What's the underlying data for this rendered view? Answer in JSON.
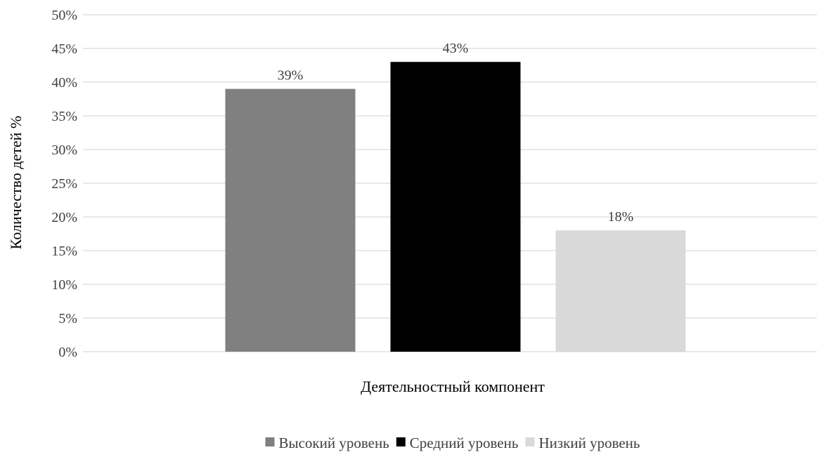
{
  "chart_data": {
    "type": "bar",
    "categories": [
      "Деятельностный компонент"
    ],
    "series": [
      {
        "name": "Высокий уровень",
        "values": [
          39
        ],
        "color": "#808080",
        "value_label": "39%"
      },
      {
        "name": "Средний уровень",
        "values": [
          43
        ],
        "color": "#000000",
        "value_label": "43%"
      },
      {
        "name": "Низкий уровень",
        "values": [
          18
        ],
        "color": "#d9d9d9",
        "value_label": "18%"
      }
    ],
    "xlabel": "Деятельностный компонент",
    "ylabel": "Количество детей %",
    "ylim": [
      0,
      50
    ],
    "yticks": [
      0,
      5,
      10,
      15,
      20,
      25,
      30,
      35,
      40,
      45,
      50
    ],
    "ytick_labels": [
      "0%",
      "5%",
      "10%",
      "15%",
      "20%",
      "25%",
      "30%",
      "35%",
      "40%",
      "45%",
      "50%"
    ],
    "grid": true,
    "legend_position": "bottom"
  }
}
